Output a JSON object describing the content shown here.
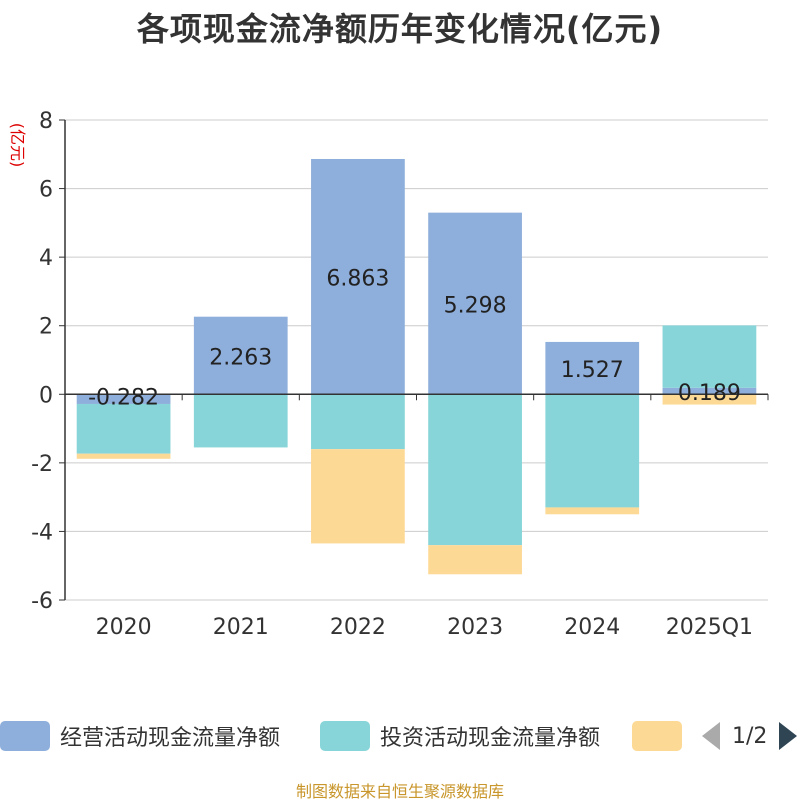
{
  "chart_data": {
    "type": "bar",
    "stacked": true,
    "title": "各项现金流净额历年变化情况(亿元)",
    "ylabel": "(亿元)",
    "ylim": [
      -6,
      8
    ],
    "yticks": [
      -6,
      -4,
      -2,
      0,
      2,
      4,
      6,
      8
    ],
    "categories": [
      "2020",
      "2021",
      "2022",
      "2023",
      "2024",
      "2025Q1"
    ],
    "series": [
      {
        "name": "经营活动现金流量净额",
        "color": "#8eaedb",
        "values": [
          -0.282,
          2.263,
          6.863,
          5.298,
          1.527,
          0.189
        ],
        "labels": [
          "-0.282",
          "2.263",
          "6.863",
          "5.298",
          "1.527",
          "0.189"
        ]
      },
      {
        "name": "投资活动现金流量净额",
        "color": "#87d5d8",
        "values": [
          -1.45,
          -1.55,
          -1.6,
          -4.4,
          -3.3,
          1.82
        ]
      },
      {
        "name": "",
        "color": "#fdd996",
        "values": [
          -0.15,
          0,
          -2.75,
          -0.85,
          -0.2,
          -0.3
        ]
      }
    ],
    "grid": true,
    "legend_position": "bottom"
  },
  "legend": {
    "page": "1/2"
  },
  "source": "制图数据来自恒生聚源数据库"
}
